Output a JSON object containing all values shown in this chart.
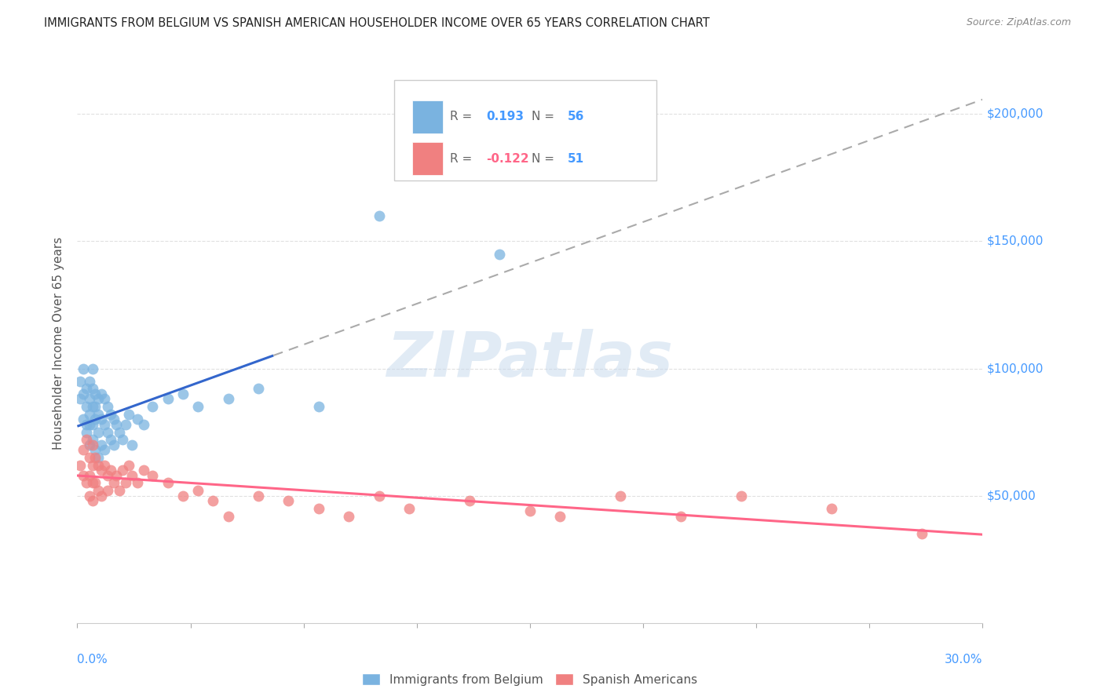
{
  "title": "IMMIGRANTS FROM BELGIUM VS SPANISH AMERICAN HOUSEHOLDER INCOME OVER 65 YEARS CORRELATION CHART",
  "source": "Source: ZipAtlas.com",
  "ylabel": "Householder Income Over 65 years",
  "xmin": 0.0,
  "xmax": 0.3,
  "ymin": 0,
  "ymax": 220000,
  "yticks": [
    50000,
    100000,
    150000,
    200000
  ],
  "ytick_labels": [
    "$50,000",
    "$100,000",
    "$150,000",
    "$200,000"
  ],
  "background_color": "#ffffff",
  "grid_color": "#dddddd",
  "series1_label": "Immigrants from Belgium",
  "series2_label": "Spanish Americans",
  "series1_color": "#7ab3e0",
  "series2_color": "#f08080",
  "series1_R": 0.193,
  "series1_N": 56,
  "series2_R": -0.122,
  "series2_N": 51,
  "trend1_color": "#3366cc",
  "trend2_color": "#ff6688",
  "trend1_dashed_color": "#aaaaaa",
  "watermark": "ZIPatlas",
  "series1_x": [
    0.001,
    0.001,
    0.002,
    0.002,
    0.002,
    0.003,
    0.003,
    0.003,
    0.003,
    0.004,
    0.004,
    0.004,
    0.004,
    0.004,
    0.005,
    0.005,
    0.005,
    0.005,
    0.005,
    0.006,
    0.006,
    0.006,
    0.006,
    0.007,
    0.007,
    0.007,
    0.007,
    0.008,
    0.008,
    0.008,
    0.009,
    0.009,
    0.009,
    0.01,
    0.01,
    0.011,
    0.011,
    0.012,
    0.012,
    0.013,
    0.014,
    0.015,
    0.016,
    0.017,
    0.018,
    0.02,
    0.022,
    0.025,
    0.03,
    0.035,
    0.04,
    0.05,
    0.06,
    0.08,
    0.1,
    0.14
  ],
  "series1_y": [
    95000,
    88000,
    100000,
    90000,
    80000,
    85000,
    78000,
    92000,
    75000,
    88000,
    82000,
    95000,
    78000,
    70000,
    100000,
    92000,
    85000,
    78000,
    72000,
    90000,
    85000,
    80000,
    68000,
    88000,
    82000,
    75000,
    65000,
    90000,
    80000,
    70000,
    88000,
    78000,
    68000,
    85000,
    75000,
    82000,
    72000,
    80000,
    70000,
    78000,
    75000,
    72000,
    78000,
    82000,
    70000,
    80000,
    78000,
    85000,
    88000,
    90000,
    85000,
    88000,
    92000,
    85000,
    160000,
    145000
  ],
  "series2_x": [
    0.001,
    0.002,
    0.002,
    0.003,
    0.003,
    0.004,
    0.004,
    0.004,
    0.005,
    0.005,
    0.005,
    0.005,
    0.006,
    0.006,
    0.007,
    0.007,
    0.008,
    0.008,
    0.009,
    0.01,
    0.01,
    0.011,
    0.012,
    0.013,
    0.014,
    0.015,
    0.016,
    0.017,
    0.018,
    0.02,
    0.022,
    0.025,
    0.03,
    0.035,
    0.04,
    0.045,
    0.05,
    0.06,
    0.07,
    0.08,
    0.09,
    0.1,
    0.11,
    0.13,
    0.15,
    0.16,
    0.18,
    0.2,
    0.22,
    0.25,
    0.28
  ],
  "series2_y": [
    62000,
    68000,
    58000,
    72000,
    55000,
    65000,
    58000,
    50000,
    70000,
    62000,
    55000,
    48000,
    65000,
    55000,
    62000,
    52000,
    60000,
    50000,
    62000,
    58000,
    52000,
    60000,
    55000,
    58000,
    52000,
    60000,
    55000,
    62000,
    58000,
    55000,
    60000,
    58000,
    55000,
    50000,
    52000,
    48000,
    42000,
    50000,
    48000,
    45000,
    42000,
    50000,
    45000,
    48000,
    44000,
    42000,
    50000,
    42000,
    50000,
    45000,
    35000
  ],
  "trend1_x_solid_start": 0.0,
  "trend1_x_solid_end": 0.065,
  "trend1_x_dash_start": 0.065,
  "trend1_x_dash_end": 0.3
}
